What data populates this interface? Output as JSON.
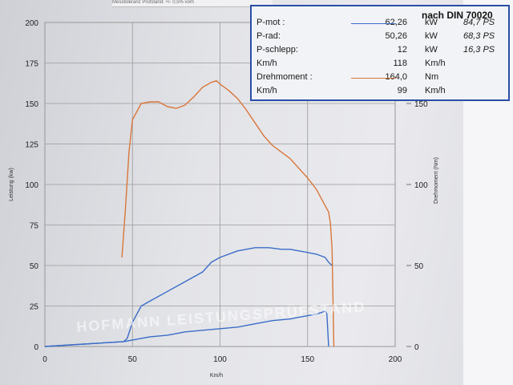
{
  "header_strip": "Messtoleranz Prüfstand: +/- 0,5% vom",
  "legend": {
    "title": "nach DIN 70020",
    "rows": [
      {
        "label": "P-mot :",
        "value": "62,26",
        "unit": "kW",
        "ps": "84,7  PS",
        "line": true,
        "color": "#3a6cc8"
      },
      {
        "label": "P-rad:",
        "value": "50,26",
        "unit": "kW",
        "ps": "68,3  PS"
      },
      {
        "label": "P-schlepp:",
        "value": "12",
        "unit": "kW",
        "ps": "16,3  PS"
      },
      {
        "label": "Km/h",
        "value": "118",
        "unit": "Km/h",
        "ps": ""
      },
      {
        "label": "Drehmoment :",
        "value": "164,0",
        "unit": "Nm",
        "ps": "",
        "line": true,
        "color": "#d9763a"
      },
      {
        "label": "Km/h",
        "value": "99",
        "unit": "Km/h",
        "ps": ""
      }
    ]
  },
  "watermark": "HOFMANN LEISTUNGSPRÜFSTAND",
  "chart_data": {
    "type": "line",
    "xlabel": "Km/h",
    "ylabel_left": "Leistung (kw)",
    "ylabel_right": "Drehmoment (Nm)",
    "xlim": [
      0,
      200
    ],
    "ylim_left": [
      0,
      200
    ],
    "ylim_right": [
      0,
      200
    ],
    "xticks": [
      "0",
      "50",
      "100",
      "150",
      "200"
    ],
    "yticks_left": [
      "0",
      "25",
      "50",
      "75",
      "100",
      "125",
      "150",
      "175",
      "200"
    ],
    "yticks_right": [
      "0",
      "50",
      "100",
      "150"
    ],
    "grid": true,
    "series": [
      {
        "name": "P-mot",
        "axis": "left",
        "color": "#3a6cc8",
        "x": [
          0,
          45,
          47,
          50,
          55,
          60,
          70,
          80,
          90,
          95,
          100,
          110,
          120,
          128,
          135,
          140,
          145,
          150,
          155,
          160,
          162,
          164
        ],
        "y": [
          0,
          3,
          5,
          15,
          25,
          28,
          34,
          40,
          46,
          52,
          55,
          59,
          61,
          61,
          60,
          60,
          59,
          58,
          57,
          55,
          52,
          50
        ]
      },
      {
        "name": "P-schlepp",
        "axis": "left",
        "color": "#3a6cc8",
        "x": [
          0,
          45,
          50,
          60,
          70,
          80,
          90,
          100,
          110,
          120,
          130,
          140,
          145,
          150,
          155,
          158,
          160,
          161,
          162
        ],
        "y": [
          0,
          3,
          4,
          6,
          7,
          9,
          10,
          11,
          12,
          14,
          16,
          17,
          18,
          19,
          20,
          21,
          22,
          20,
          0
        ]
      },
      {
        "name": "Drehmoment",
        "axis": "right",
        "color": "#d9763a",
        "x": [
          44,
          46,
          48,
          50,
          55,
          60,
          65,
          70,
          75,
          80,
          85,
          90,
          95,
          98,
          100,
          105,
          110,
          115,
          120,
          125,
          130,
          135,
          140,
          145,
          150,
          155,
          158,
          160,
          162,
          163,
          164,
          165
        ],
        "y": [
          55,
          85,
          120,
          140,
          150,
          151,
          151,
          148,
          147,
          149,
          154,
          160,
          163,
          164,
          162,
          158,
          153,
          146,
          138,
          130,
          124,
          120,
          116,
          110,
          104,
          97,
          91,
          87,
          83,
          76,
          60,
          0
        ]
      }
    ]
  }
}
